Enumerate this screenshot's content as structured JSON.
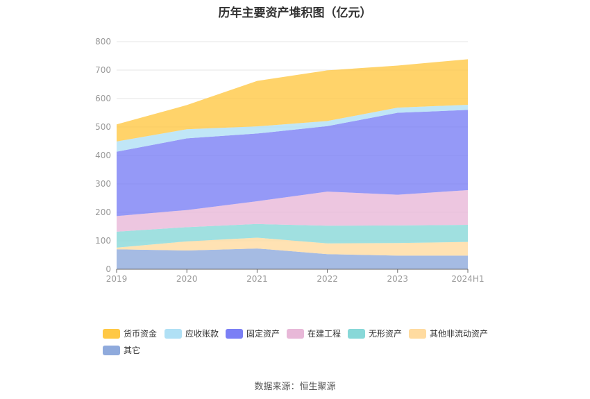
{
  "title": "历年主要资产堆积图（亿元）",
  "source": "数据来源：恒生聚源",
  "chart_data": {
    "type": "area",
    "stacked": true,
    "categories": [
      "2019",
      "2020",
      "2021",
      "2022",
      "2023",
      "2024H1"
    ],
    "ylim": [
      0,
      800
    ],
    "yticks": [
      0,
      100,
      200,
      300,
      400,
      500,
      600,
      700,
      800
    ],
    "grid": true,
    "legend_position": "bottom",
    "series": [
      {
        "name": "其它",
        "color": "#8FAADC",
        "values": [
          70,
          66,
          73,
          53,
          48,
          48
        ]
      },
      {
        "name": "其他非流动资产",
        "color": "#FFDBA0",
        "values": [
          6,
          32,
          38,
          38,
          44,
          48
        ]
      },
      {
        "name": "无形资产",
        "color": "#88D8D8",
        "values": [
          56,
          50,
          48,
          62,
          62,
          60
        ]
      },
      {
        "name": "在建工程",
        "color": "#E8B8D8",
        "values": [
          55,
          60,
          80,
          120,
          108,
          122
        ]
      },
      {
        "name": "固定资产",
        "color": "#7B7FF5",
        "values": [
          226,
          252,
          238,
          230,
          288,
          282
        ]
      },
      {
        "name": "应收账款",
        "color": "#B0E0F5",
        "values": [
          36,
          32,
          25,
          18,
          18,
          18
        ]
      },
      {
        "name": "货币资金",
        "color": "#FFC845",
        "values": [
          60,
          85,
          160,
          178,
          148,
          160
        ]
      }
    ]
  }
}
